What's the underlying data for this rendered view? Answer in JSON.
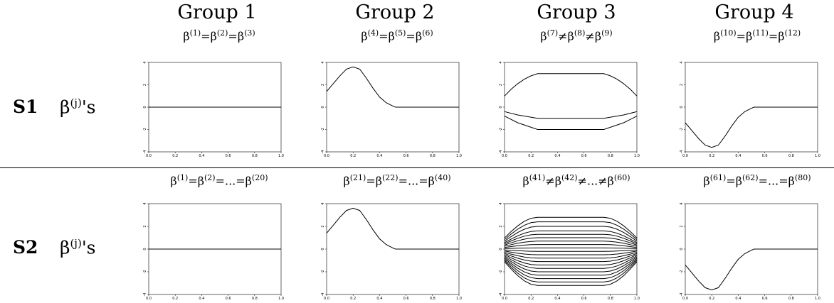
{
  "groups": [
    "Group 1",
    "Group 2",
    "Group 3",
    "Group 4"
  ],
  "rows": [
    {
      "label": "S1",
      "beta_label": "β",
      "beta_sup": "(j)",
      "beta_suffix": "'s",
      "equations": [
        [
          [
            "β",
            "(1)"
          ],
          [
            "=",
            ""
          ],
          [
            "β",
            "(2)"
          ],
          [
            "=",
            ""
          ],
          [
            "β",
            "(3)"
          ]
        ],
        [
          [
            "β",
            "(4)"
          ],
          [
            "=",
            ""
          ],
          [
            "β",
            "(5)"
          ],
          [
            "=",
            ""
          ],
          [
            "β",
            "(6)"
          ]
        ],
        [
          [
            "β",
            "(7)"
          ],
          [
            "≠",
            ""
          ],
          [
            "β",
            "(8)"
          ],
          [
            "≠",
            ""
          ],
          [
            "β",
            "(9)"
          ]
        ],
        [
          [
            "β",
            "(10)"
          ],
          [
            "=",
            ""
          ],
          [
            "β",
            "(11)"
          ],
          [
            "=",
            ""
          ],
          [
            "β",
            "(12)"
          ]
        ]
      ]
    },
    {
      "label": "S2",
      "beta_label": "β",
      "beta_sup": "(j)",
      "beta_suffix": "'s",
      "equations": [
        [
          [
            "β",
            "(1)"
          ],
          [
            "=",
            ""
          ],
          [
            "β",
            "(2)"
          ],
          [
            "=...=",
            ""
          ],
          [
            "β",
            "(20)"
          ]
        ],
        [
          [
            "β",
            "(21)"
          ],
          [
            "=",
            ""
          ],
          [
            "β",
            "(22)"
          ],
          [
            "=...=",
            ""
          ],
          [
            "β",
            "(40)"
          ]
        ],
        [
          [
            "β",
            "(41)"
          ],
          [
            "≠",
            ""
          ],
          [
            "β",
            "(42)"
          ],
          [
            "≠...≠",
            ""
          ],
          [
            "β",
            "(60)"
          ]
        ],
        [
          [
            "β",
            "(61)"
          ],
          [
            "=",
            ""
          ],
          [
            "β",
            "(62)"
          ],
          [
            "=...=",
            ""
          ],
          [
            "β",
            "(80)"
          ]
        ]
      ]
    }
  ],
  "chart_data": {
    "type": "line",
    "xlim": [
      0,
      1
    ],
    "ylim": [
      -4,
      4
    ],
    "x_ticks": [
      "0.0",
      "0.2",
      "0.4",
      "0.6",
      "0.8",
      "1.0"
    ],
    "y_ticks": [
      "-4",
      "-2",
      "0",
      "2",
      "4"
    ],
    "panels": [
      {
        "row": "S1",
        "group": "Group 1",
        "series": [
          {
            "x": [
              0,
              1
            ],
            "y": [
              0,
              0
            ]
          }
        ]
      },
      {
        "row": "S1",
        "group": "Group 2",
        "series": [
          {
            "x": [
              0,
              0.05,
              0.1,
              0.15,
              0.2,
              0.25,
              0.3,
              0.35,
              0.4,
              0.45,
              0.5,
              0.52,
              0.6,
              0.7,
              0.8,
              0.9,
              1.0
            ],
            "y": [
              1.4,
              2.1,
              2.8,
              3.4,
              3.6,
              3.4,
              2.6,
              1.7,
              0.9,
              0.4,
              0.1,
              0,
              0,
              0,
              0,
              0,
              0
            ]
          }
        ]
      },
      {
        "row": "S1",
        "group": "Group 3",
        "series": [
          {
            "x": [
              0,
              0.05,
              0.1,
              0.15,
              0.2,
              0.25,
              0.5,
              0.75,
              0.8,
              0.85,
              0.9,
              0.95,
              1.0
            ],
            "y": [
              1.0,
              1.6,
              2.1,
              2.5,
              2.8,
              3.0,
              3.0,
              3.0,
              2.8,
              2.5,
              2.1,
              1.6,
              1.0
            ]
          },
          {
            "x": [
              0,
              0.1,
              0.25,
              0.5,
              0.75,
              0.9,
              1.0
            ],
            "y": [
              -0.4,
              -0.7,
              -1.0,
              -1.0,
              -1.0,
              -0.7,
              -0.4
            ]
          },
          {
            "x": [
              0,
              0.1,
              0.25,
              0.5,
              0.75,
              0.9,
              1.0
            ],
            "y": [
              -0.8,
              -1.4,
              -2.0,
              -2.0,
              -2.0,
              -1.4,
              -0.8
            ]
          }
        ]
      },
      {
        "row": "S1",
        "group": "Group 4",
        "series": [
          {
            "x": [
              0,
              0.05,
              0.1,
              0.15,
              0.2,
              0.25,
              0.3,
              0.35,
              0.4,
              0.45,
              0.5,
              0.52,
              0.6,
              0.7,
              0.8,
              0.9,
              1.0
            ],
            "y": [
              -1.4,
              -2.1,
              -2.8,
              -3.4,
              -3.6,
              -3.4,
              -2.6,
              -1.7,
              -0.9,
              -0.4,
              -0.1,
              0,
              0,
              0,
              0,
              0,
              0
            ]
          }
        ]
      },
      {
        "row": "S2",
        "group": "Group 1",
        "series": [
          {
            "x": [
              0,
              1
            ],
            "y": [
              0,
              0
            ]
          }
        ]
      },
      {
        "row": "S2",
        "group": "Group 2",
        "series": [
          {
            "x": [
              0,
              0.05,
              0.1,
              0.15,
              0.2,
              0.25,
              0.3,
              0.35,
              0.4,
              0.45,
              0.5,
              0.52,
              0.6,
              0.7,
              0.8,
              0.9,
              1.0
            ],
            "y": [
              1.4,
              2.1,
              2.8,
              3.4,
              3.6,
              3.4,
              2.6,
              1.7,
              0.9,
              0.4,
              0.1,
              0,
              0,
              0,
              0,
              0,
              0
            ]
          }
        ]
      },
      {
        "row": "S2",
        "group": "Group 3",
        "fan_levels": [
          2.8,
          2.4,
          2.0,
          1.6,
          1.3,
          1.0,
          0.7,
          0.4,
          0.1,
          -0.2,
          -0.5,
          -0.8,
          -1.1,
          -1.4,
          -1.7,
          -2.0,
          -2.3,
          -2.6,
          -2.9,
          -3.2
        ],
        "fan_end_scale": 0.35,
        "fan_plateau": [
          0.25,
          0.75
        ]
      },
      {
        "row": "S2",
        "group": "Group 4",
        "series": [
          {
            "x": [
              0,
              0.05,
              0.1,
              0.15,
              0.2,
              0.25,
              0.3,
              0.35,
              0.4,
              0.45,
              0.5,
              0.52,
              0.6,
              0.7,
              0.8,
              0.9,
              1.0
            ],
            "y": [
              -1.4,
              -2.1,
              -2.8,
              -3.4,
              -3.6,
              -3.4,
              -2.6,
              -1.7,
              -0.9,
              -0.4,
              -0.1,
              0,
              0,
              0,
              0,
              0,
              0
            ]
          }
        ]
      }
    ]
  }
}
